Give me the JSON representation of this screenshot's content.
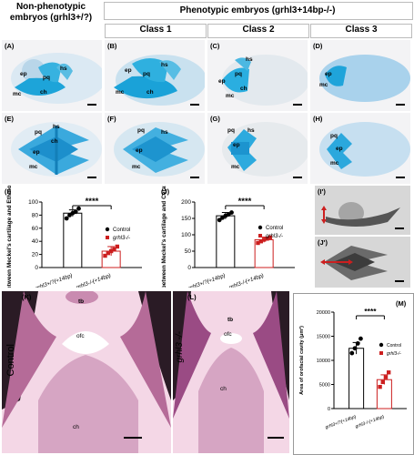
{
  "headers": {
    "nonpheno_line1": "Non-phenotypic",
    "nonpheno_line2": "embryos (grhl3+/?)",
    "pheno": "Phenotypic embryos (grhl3+14bp-/-)",
    "class1": "Class 1",
    "class2": "Class 2",
    "class3": "Class 3"
  },
  "panel_labels": {
    "A": "(A)",
    "B": "(B)",
    "C": "(C)",
    "D": "(D)",
    "E": "(E)",
    "F": "(F)",
    "G": "(G)",
    "H": "(H)",
    "I": "(I)",
    "J": "(J)",
    "I2": "(I')",
    "J2": "(J')",
    "K": "(K)",
    "L": "(L)",
    "M": "(M)"
  },
  "anatomy": {
    "ep": "ep",
    "pq": "pq",
    "hs": "hs",
    "mc": "mc",
    "ch": "ch",
    "tb": "tb",
    "ofc": "ofc"
  },
  "side_labels": {
    "control": "Control",
    "mutant": "grhl3 -/-"
  },
  "chart_data": [
    {
      "id": "I",
      "type": "bar",
      "categories": [
        "grhl3+/?(+14bp)",
        "grhl3-/-(+14bp)"
      ],
      "values": [
        83,
        25
      ],
      "errors": [
        5,
        7
      ],
      "points": [
        [
          75,
          80,
          83,
          85,
          90
        ],
        [
          18,
          22,
          25,
          28,
          32
        ]
      ],
      "ylabel": "Distance between Meckel's cartilage and Ethmoid plate (μM)",
      "ylim": [
        0,
        100
      ],
      "yticks": [
        0,
        20,
        40,
        60,
        80,
        100
      ],
      "significance": "****",
      "legend": [
        "Control",
        "grhl3-/-"
      ],
      "colors": [
        "#000000",
        "#cc1f1f"
      ]
    },
    {
      "id": "J",
      "type": "bar",
      "categories": [
        "grhl3+/?(+14bp)",
        "grhl3-/-(+14bp)"
      ],
      "values": [
        158,
        85
      ],
      "errors": [
        10,
        8
      ],
      "points": [
        [
          145,
          152,
          158,
          162,
          168
        ],
        [
          75,
          80,
          85,
          88,
          92
        ]
      ],
      "ylabel": "Distance between Meckel's cartilage and Ceratohyal (μM)",
      "ylim": [
        0,
        200
      ],
      "yticks": [
        0,
        50,
        100,
        150,
        200
      ],
      "significance": "****",
      "legend": [
        "Control",
        "grhl3-/-"
      ],
      "colors": [
        "#000000",
        "#cc1f1f"
      ]
    },
    {
      "id": "M",
      "type": "bar",
      "categories": [
        "grhl3+/?(+14bp)",
        "grhl3-/-(+14bp)"
      ],
      "values": [
        12500,
        6000
      ],
      "errors": [
        1200,
        1000
      ],
      "points": [
        [
          11500,
          12500,
          13500,
          14500
        ],
        [
          4500,
          5500,
          6500,
          7500
        ]
      ],
      "ylabel": "Area of orofacial cavity (μm²)",
      "ylim": [
        0,
        20000
      ],
      "yticks": [
        0,
        5000,
        10000,
        15000,
        20000
      ],
      "significance": "****",
      "legend": [
        "Control",
        "grhl3-/-"
      ],
      "colors": [
        "#000000",
        "#cc1f1f"
      ]
    }
  ]
}
